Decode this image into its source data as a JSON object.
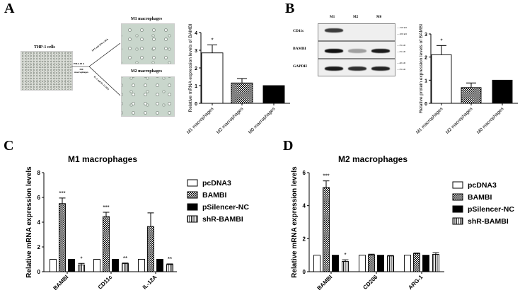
{
  "panels": {
    "a": "A",
    "b": "B",
    "c": "C",
    "d": "D"
  },
  "panel_a_schematic": {
    "thp1_title": "THP-1 cells",
    "m0_step": "PMA 48 h",
    "m0_label": "M0 macrophages",
    "m1_step": "LPS and IFN-γ 48 h",
    "m2_step": "IL-4 and IL-13 48 h",
    "m1_title": "M1 macrophages",
    "m2_title": "M2 macrophages"
  },
  "panel_b_blot": {
    "lanes": [
      "M1",
      "M2",
      "M0"
    ],
    "rows": [
      {
        "label": "CD11c",
        "markers": [
          "150 kD",
          "100 kD"
        ],
        "intensity": [
          0.8,
          0,
          0
        ]
      },
      {
        "label": "BAMBI",
        "markers": [
          "35 kD",
          "25 kD"
        ],
        "intensity": [
          1,
          0.35,
          0.95
        ]
      },
      {
        "label": "GAPDH",
        "markers": [
          "40 kD",
          "35 kD"
        ],
        "intensity": [
          0.95,
          0.85,
          0.9
        ]
      }
    ]
  },
  "chart_data": [
    {
      "type": "bar",
      "title": "",
      "xlabel": "",
      "ylabel": "Relative mRNA expression levels of BAMBI",
      "ylim": [
        0,
        4
      ],
      "yticks": [
        "0",
        "1",
        "2",
        "3",
        "4"
      ],
      "categories": [
        "M1 macrophages",
        "M2 macrophages",
        "M0 macrophages"
      ],
      "values": [
        2.85,
        1.15,
        1.0
      ],
      "errors": [
        0.45,
        0.25,
        0
      ],
      "significance": [
        "*",
        "",
        ""
      ],
      "patterns": [
        "white",
        "checker",
        "black"
      ]
    },
    {
      "type": "bar",
      "title": "",
      "xlabel": "",
      "ylabel": "Relative protein expression levels of BAMBI",
      "ylim": [
        0,
        3
      ],
      "yticks": [
        "0",
        "1",
        "2",
        "3"
      ],
      "categories": [
        "M1 macrophages",
        "M2 macrophages",
        "M0 macrophages"
      ],
      "values": [
        2.1,
        0.68,
        1.0
      ],
      "errors": [
        0.4,
        0.2,
        0
      ],
      "significance": [
        "*",
        "",
        ""
      ],
      "patterns": [
        "white",
        "checker",
        "black"
      ]
    },
    {
      "type": "bar",
      "title": "M1 macrophages",
      "xlabel": "",
      "ylabel": "Relative mRNA expression levels",
      "ylim": [
        0,
        8
      ],
      "yticks": [
        "0",
        "2",
        "4",
        "6",
        "8"
      ],
      "categories": [
        "BAMBI",
        "CD11c",
        "IL-12A"
      ],
      "legend_position": "right",
      "series": [
        {
          "name": "pcDNA3",
          "pattern": "white",
          "values": [
            1,
            1,
            1
          ],
          "errors": [
            0,
            0,
            0
          ],
          "significance": [
            "",
            "",
            ""
          ]
        },
        {
          "name": "BAMBI",
          "pattern": "checker",
          "values": [
            5.5,
            4.45,
            3.65
          ],
          "errors": [
            0.45,
            0.35,
            1.1
          ],
          "significance": [
            "***",
            "***",
            ""
          ]
        },
        {
          "name": "pSilencer-NC",
          "pattern": "black",
          "values": [
            1,
            1,
            1
          ],
          "errors": [
            0,
            0,
            0
          ],
          "significance": [
            "",
            "",
            ""
          ]
        },
        {
          "name": "shR-BAMBI",
          "pattern": "stripes",
          "values": [
            0.55,
            0.65,
            0.58
          ],
          "errors": [
            0.12,
            0.05,
            0.05
          ],
          "significance": [
            "*",
            "**",
            "**"
          ]
        }
      ]
    },
    {
      "type": "bar",
      "title": "M2 macrophages",
      "xlabel": "",
      "ylabel": "Relative mRNA expression levels",
      "ylim": [
        0,
        6
      ],
      "yticks": [
        "0",
        "2",
        "4",
        "6"
      ],
      "categories": [
        "BAMBI",
        "CD206",
        "ARG-1"
      ],
      "legend_position": "right",
      "series": [
        {
          "name": "pcDNA3",
          "pattern": "white",
          "values": [
            1,
            1,
            1
          ],
          "errors": [
            0,
            0,
            0
          ],
          "significance": [
            "",
            "",
            ""
          ]
        },
        {
          "name": "BAMBI",
          "pattern": "checker",
          "values": [
            5.1,
            1.02,
            1.1
          ],
          "errors": [
            0.4,
            0.04,
            0.03
          ],
          "significance": [
            "***",
            "",
            ""
          ]
        },
        {
          "name": "pSilencer-NC",
          "pattern": "black",
          "values": [
            1,
            1,
            1
          ],
          "errors": [
            0,
            0,
            0
          ],
          "significance": [
            "",
            "",
            ""
          ]
        },
        {
          "name": "shR-BAMBI",
          "pattern": "stripes",
          "values": [
            0.62,
            0.95,
            1.05
          ],
          "errors": [
            0.1,
            0.03,
            0.1
          ],
          "significance": [
            "*",
            "",
            ""
          ]
        }
      ]
    }
  ]
}
